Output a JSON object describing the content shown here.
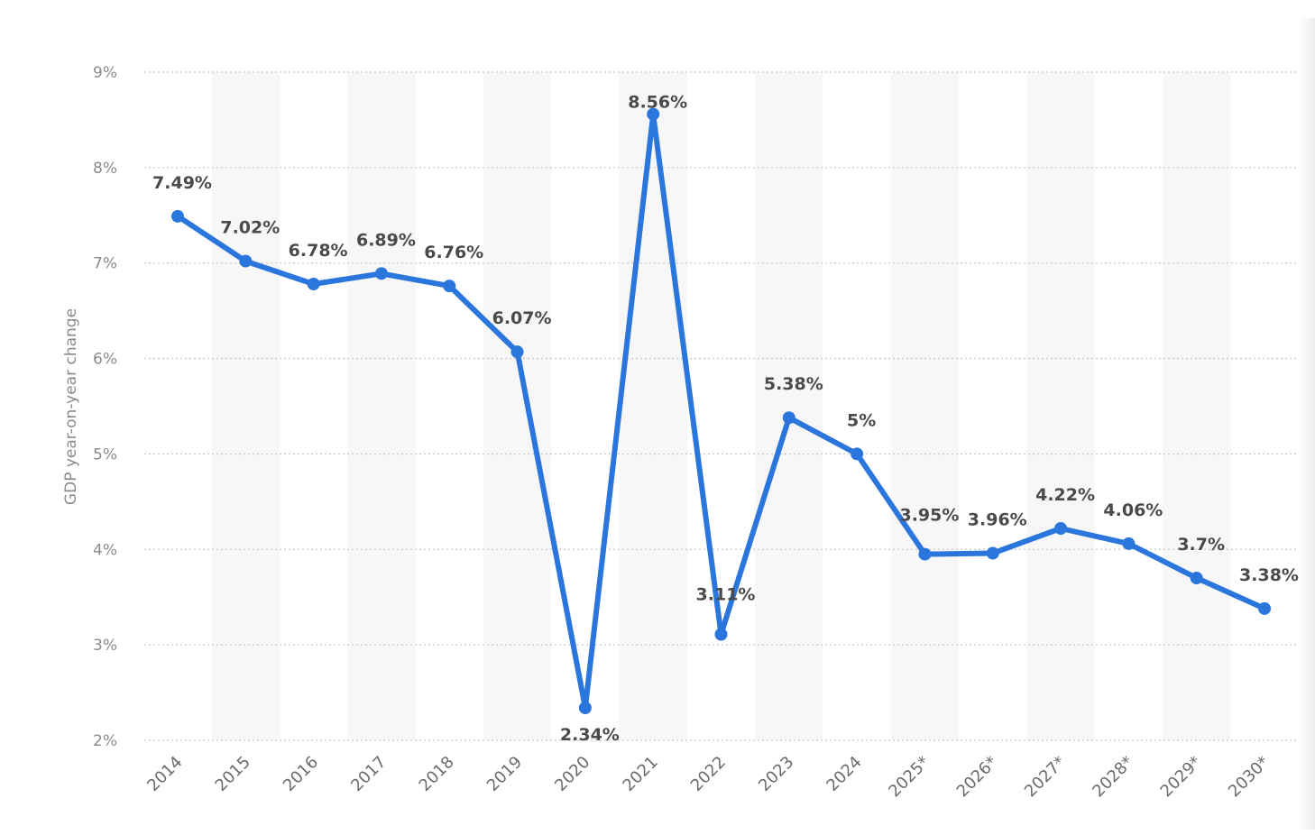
{
  "chart_data": {
    "type": "line",
    "title": "",
    "xlabel": "",
    "ylabel": "GDP year-on-year change",
    "categories": [
      "2014",
      "2015",
      "2016",
      "2017",
      "2018",
      "2019",
      "2020",
      "2021",
      "2022",
      "2023",
      "2024",
      "2025*",
      "2026*",
      "2027*",
      "2028*",
      "2029*",
      "2030*"
    ],
    "series": [
      {
        "values": [
          7.49,
          7.02,
          6.78,
          6.89,
          6.76,
          6.07,
          2.34,
          8.56,
          3.11,
          5.38,
          5,
          3.95,
          3.96,
          4.22,
          4.06,
          3.7,
          3.38
        ]
      }
    ],
    "data_labels": [
      "7.49%",
      "7.02%",
      "6.78%",
      "6.89%",
      "6.76%",
      "6.07%",
      "2.34%",
      "8.56%",
      "3.11%",
      "5.38%",
      "5%",
      "3.95%",
      "3.96%",
      "4.22%",
      "4.06%",
      "3.7%",
      "3.38%"
    ],
    "y_ticks": [
      "2%",
      "3%",
      "4%",
      "5%",
      "6%",
      "7%",
      "8%",
      "9%"
    ],
    "ylim": [
      2,
      9
    ],
    "grid": "horizontal dotted",
    "alternating_column_shading": true,
    "legend": "none",
    "colors": {
      "line": "#2b76dd",
      "grid": "#c8c8c8",
      "band": "#f7f7f8",
      "label_text": "#4a4a4a",
      "axis_text": "#8a8a8a"
    }
  }
}
